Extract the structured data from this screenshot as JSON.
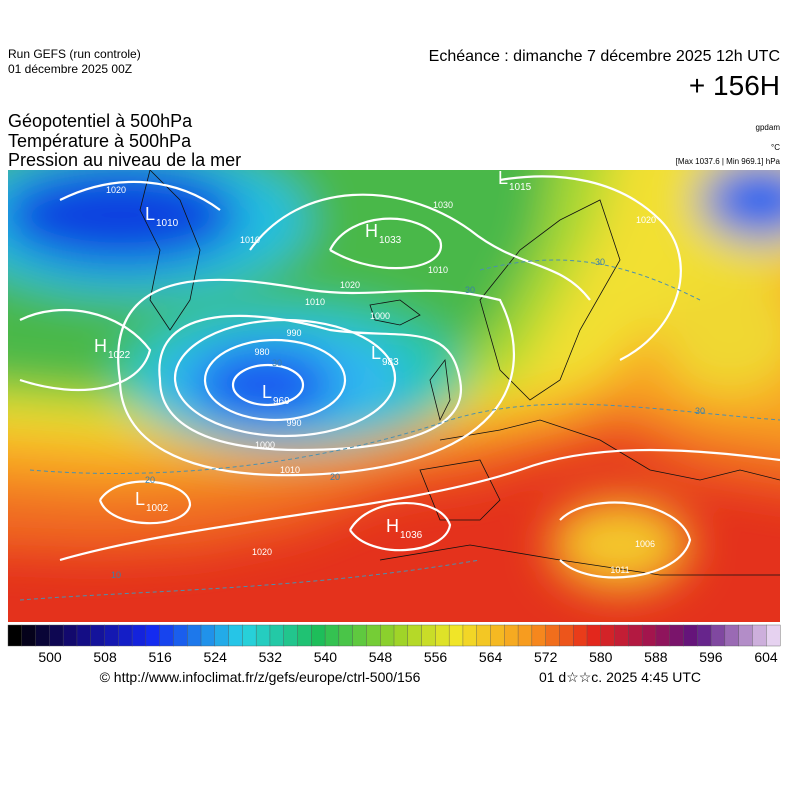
{
  "header": {
    "run": "Run GEFS (run controle)",
    "run_date": "01 décembre 2025 00Z",
    "valid": "Echéance : dimanche 7 décembre 2025 12h UTC",
    "lead": "+ 156H",
    "fields": [
      "Géopotentiel à 500hPa",
      "Température à 500hPa",
      "Pression au niveau de la mer"
    ],
    "unit_geopotential": "gpdam",
    "unit_temperature": "°C",
    "pressure_range": "[Max 1037.6 | Min 969.1] hPa"
  },
  "map": {
    "centers": [
      {
        "type": "L",
        "pressure": "1010"
      },
      {
        "type": "H",
        "pressure": "1033"
      },
      {
        "type": "L",
        "pressure": "1015"
      },
      {
        "type": "H",
        "pressure": "1022"
      },
      {
        "type": "L",
        "pressure": "983"
      },
      {
        "type": "L",
        "pressure": "969"
      },
      {
        "type": "L",
        "pressure": "1002"
      },
      {
        "type": "H",
        "pressure": "1036"
      }
    ],
    "isobar_labels": [
      "1020",
      "1010",
      "1030",
      "1020",
      "1010",
      "1000",
      "990",
      "980",
      "990",
      "1000",
      "1010",
      "1020",
      "1010",
      "1020",
      "1006",
      "1011"
    ],
    "temperature_labels": [
      "30",
      "20",
      "30",
      "30",
      "20",
      "10",
      "30"
    ]
  },
  "colorbar": {
    "ticks": [
      500,
      508,
      516,
      524,
      532,
      540,
      548,
      556,
      564,
      572,
      580,
      588,
      596,
      604
    ]
  },
  "footer": {
    "source": "© http://www.infoclimat.fr/z/gefs/europe/ctrl-500/156",
    "generated": "01 d☆☆c. 2025  4:45 UTC"
  }
}
